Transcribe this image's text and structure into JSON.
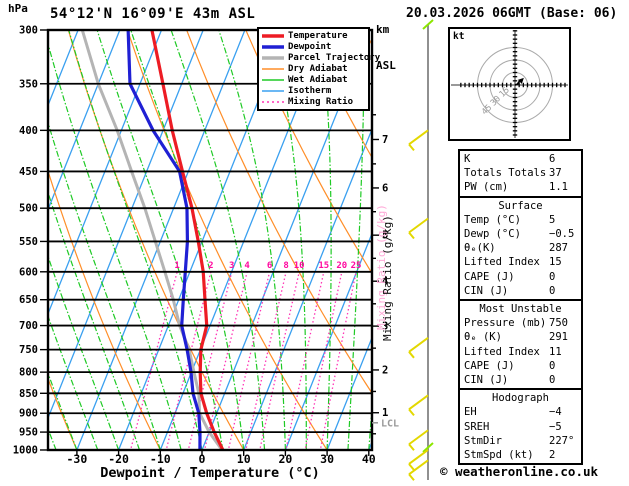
{
  "header": {
    "pressure_unit": "hPa",
    "station": "54°12'N 16°09'E 43m ASL",
    "datetime": "20.03.2026 06GMT (Base: 06)",
    "altitude_unit_line1": "km",
    "altitude_unit_line2": "ASL"
  },
  "axes": {
    "pressure_ticks": [
      300,
      350,
      400,
      450,
      500,
      550,
      600,
      650,
      700,
      750,
      800,
      850,
      900,
      950,
      1000
    ],
    "temp_ticks": [
      -30,
      -20,
      -10,
      0,
      10,
      20,
      30,
      40
    ],
    "km_ticks": [
      1,
      2,
      3,
      4,
      5,
      6,
      7
    ],
    "xlabel": "Dewpoint / Temperature (°C)",
    "mixing_ratio_axis_label": "Mixing Ratio (g/kg)",
    "lcl_label": "LCL"
  },
  "legend": {
    "items": [
      {
        "label": "Temperature",
        "color": "#ed1c24",
        "width": 3.4,
        "dash": ""
      },
      {
        "label": "Dewpoint",
        "color": "#2020d4",
        "width": 3.4,
        "dash": ""
      },
      {
        "label": "Parcel Trajectory",
        "color": "#b4b4b4",
        "width": 3.4,
        "dash": ""
      },
      {
        "label": "Dry Adiabat",
        "color": "#ff8e28",
        "width": 1.4,
        "dash": ""
      },
      {
        "label": "Wet Adiabat",
        "color": "#1fca25",
        "width": 1.4,
        "dash": ""
      },
      {
        "label": "Isotherm",
        "color": "#3aa0f0",
        "width": 1.4,
        "dash": ""
      },
      {
        "label": "Mixing Ratio",
        "color": "#ff35b5",
        "width": 1.4,
        "dash": "2 3"
      }
    ]
  },
  "chart_data": {
    "type": "skewt-log-p",
    "title": "54°12'N 16°09'E 43m ASL  20.03.2026 06GMT (Base: 06)",
    "pressure_axis_hpa": [
      300,
      1000
    ],
    "temp_axis_c": [
      -40,
      40
    ],
    "pressure_hpa": [
      1000,
      950,
      900,
      850,
      800,
      750,
      700,
      650,
      600,
      550,
      500,
      450,
      400,
      350,
      300
    ],
    "temperature_c": [
      5,
      1.2,
      -2.4,
      -5.7,
      -7.9,
      -9.9,
      -10.8,
      -13.7,
      -16.8,
      -20.9,
      -25.6,
      -31.4,
      -37.8,
      -44.5,
      -52.3
    ],
    "dewpoint_c": [
      -0.5,
      -2.2,
      -4.3,
      -7.6,
      -10.1,
      -13.2,
      -16.8,
      -18.9,
      -21.1,
      -23.5,
      -26.8,
      -32.1,
      -42.4,
      -52.4,
      -58
    ],
    "parcel_c": [
      4.8,
      0,
      -4.1,
      -6.2,
      -9.4,
      -12.7,
      -17.3,
      -21.3,
      -26,
      -31.2,
      -36.9,
      -43.6,
      -51,
      -60,
      -69
    ],
    "mixing_ratio_lines_gkg": [
      1,
      2,
      3,
      4,
      6,
      8,
      10,
      15,
      20,
      25
    ],
    "isotherm_step_c": 10,
    "dry_adiabat_step_c": 20,
    "wet_adiabat_step_c": 5,
    "lcl_pressure_hpa": 925,
    "wind_barbs": [
      {
        "p_hpa": 400,
        "speed_kt": 5,
        "dir_deg": 225
      },
      {
        "p_hpa": 515,
        "speed_kt": 5,
        "dir_deg": 225
      },
      {
        "p_hpa": 725,
        "speed_kt": 5,
        "dir_deg": 225
      },
      {
        "p_hpa": 855,
        "speed_kt": 5,
        "dir_deg": 225
      },
      {
        "p_hpa": 945,
        "speed_kt": 5,
        "dir_deg": 225
      },
      {
        "p_hpa": 1000,
        "speed_kt": 5,
        "dir_deg": 225
      },
      {
        "p_hpa": 1030,
        "speed_kt": 5,
        "dir_deg": 225
      }
    ]
  },
  "hodograph": {
    "unit_label": "kt",
    "ring_labels": [
      15,
      30,
      45
    ],
    "trace_uv_kt": [
      [
        0,
        0
      ],
      [
        3,
        1
      ],
      [
        5,
        4
      ],
      [
        7,
        5
      ]
    ]
  },
  "table": {
    "indices": {
      "rows": [
        [
          "K",
          "6"
        ],
        [
          "Totals Totals",
          "37"
        ],
        [
          "PW (cm)",
          "1.1"
        ]
      ]
    },
    "surface": {
      "title": "Surface",
      "rows": [
        [
          "Temp (°C)",
          "5"
        ],
        [
          "Dewp (°C)",
          "−0.5"
        ],
        [
          "θₑ(K)",
          "287"
        ],
        [
          "Lifted Index",
          "15"
        ],
        [
          "CAPE (J)",
          "0"
        ],
        [
          "CIN (J)",
          "0"
        ]
      ]
    },
    "most_unstable": {
      "title": "Most Unstable",
      "rows": [
        [
          "Pressure (mb)",
          "750"
        ],
        [
          "θₑ (K)",
          "291"
        ],
        [
          "Lifted Index",
          "11"
        ],
        [
          "CAPE (J)",
          "0"
        ],
        [
          "CIN (J)",
          "0"
        ]
      ]
    },
    "hodograph_stats": {
      "title": "Hodograph",
      "rows": [
        [
          "EH",
          "−4"
        ],
        [
          "SREH",
          "−5"
        ],
        [
          "StmDir",
          "227°"
        ],
        [
          "StmSpd (kt)",
          "2"
        ]
      ]
    }
  },
  "footer": {
    "credit": "© weatheronline.co.uk"
  }
}
